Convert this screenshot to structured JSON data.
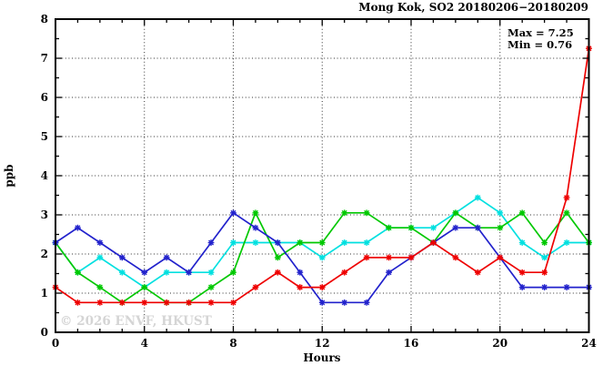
{
  "title": "Mong Kok, SO2 20180206−20180209",
  "annotation": {
    "max_label": "Max = 7.25",
    "min_label": "Min = 0.76"
  },
  "watermark": "© 2026 ENVF, HKUST",
  "chart_data": {
    "type": "line",
    "title": "Mong Kok, SO2 20180206−20180209",
    "xlabel": "Hours",
    "ylabel": "ppb",
    "xlim": [
      0,
      24
    ],
    "ylim": [
      0,
      8
    ],
    "x_major_ticks": [
      0,
      4,
      8,
      12,
      16,
      20,
      24
    ],
    "x_minor_step": 1,
    "y_major_ticks": [
      0,
      1,
      2,
      3,
      4,
      5,
      6,
      7,
      8
    ],
    "y_minor_step": 0.5,
    "grid": {
      "x_lines": [
        4,
        8,
        12,
        16,
        20
      ],
      "y_lines": [
        1,
        2,
        3,
        4,
        5,
        6,
        7
      ]
    },
    "legend_position": "none",
    "stat_max": 7.25,
    "stat_min": 0.76,
    "x": [
      0,
      1,
      2,
      3,
      4,
      5,
      6,
      7,
      8,
      9,
      10,
      11,
      12,
      13,
      14,
      15,
      16,
      17,
      18,
      19,
      20,
      21,
      22,
      23,
      24
    ],
    "series": [
      {
        "name": "cyan-series",
        "color": "#00e0e0",
        "values": [
          2.29,
          1.53,
          1.91,
          1.53,
          1.15,
          1.53,
          1.53,
          1.53,
          2.29,
          2.29,
          2.29,
          2.29,
          1.91,
          2.29,
          2.29,
          2.67,
          2.67,
          2.67,
          3.05,
          3.44,
          3.05,
          2.29,
          1.91,
          2.29,
          2.29
        ]
      },
      {
        "name": "green-series",
        "color": "#00c800",
        "values": [
          2.29,
          1.53,
          1.15,
          0.76,
          1.15,
          0.76,
          0.76,
          1.15,
          1.53,
          3.05,
          1.91,
          2.29,
          2.29,
          3.05,
          3.05,
          2.67,
          2.67,
          2.29,
          3.05,
          2.67,
          2.67,
          3.05,
          2.29,
          3.05,
          2.29
        ]
      },
      {
        "name": "blue-series",
        "color": "#2222cc",
        "values": [
          2.29,
          2.67,
          2.29,
          1.91,
          1.53,
          1.91,
          1.53,
          2.29,
          3.05,
          2.67,
          2.29,
          1.53,
          0.76,
          0.76,
          0.76,
          1.53,
          1.91,
          2.29,
          2.67,
          2.67,
          1.91,
          1.15,
          1.15,
          1.15,
          1.15
        ]
      },
      {
        "name": "red-series",
        "color": "#ee0000",
        "values": [
          1.15,
          0.76,
          0.76,
          0.76,
          0.76,
          0.76,
          0.76,
          0.76,
          0.76,
          1.15,
          1.53,
          1.15,
          1.15,
          1.53,
          1.91,
          1.91,
          1.91,
          2.29,
          1.91,
          1.53,
          1.91,
          1.53,
          1.53,
          3.44,
          7.25
        ]
      }
    ]
  }
}
